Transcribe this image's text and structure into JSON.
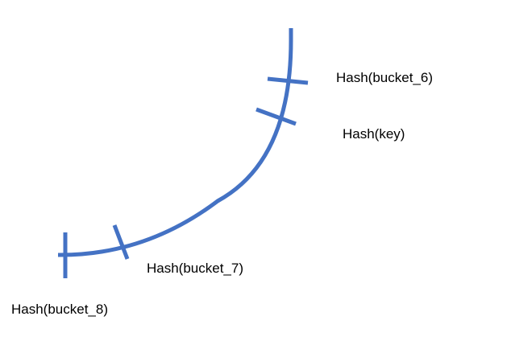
{
  "diagram": {
    "stroke_color": "#4472C4",
    "label_color": "#000000",
    "labels": {
      "bucket_6": "Hash(bucket_6)",
      "key": "Hash(key)",
      "bucket_7": "Hash(bucket_7)",
      "bucket_8": "Hash(bucket_8)"
    }
  }
}
